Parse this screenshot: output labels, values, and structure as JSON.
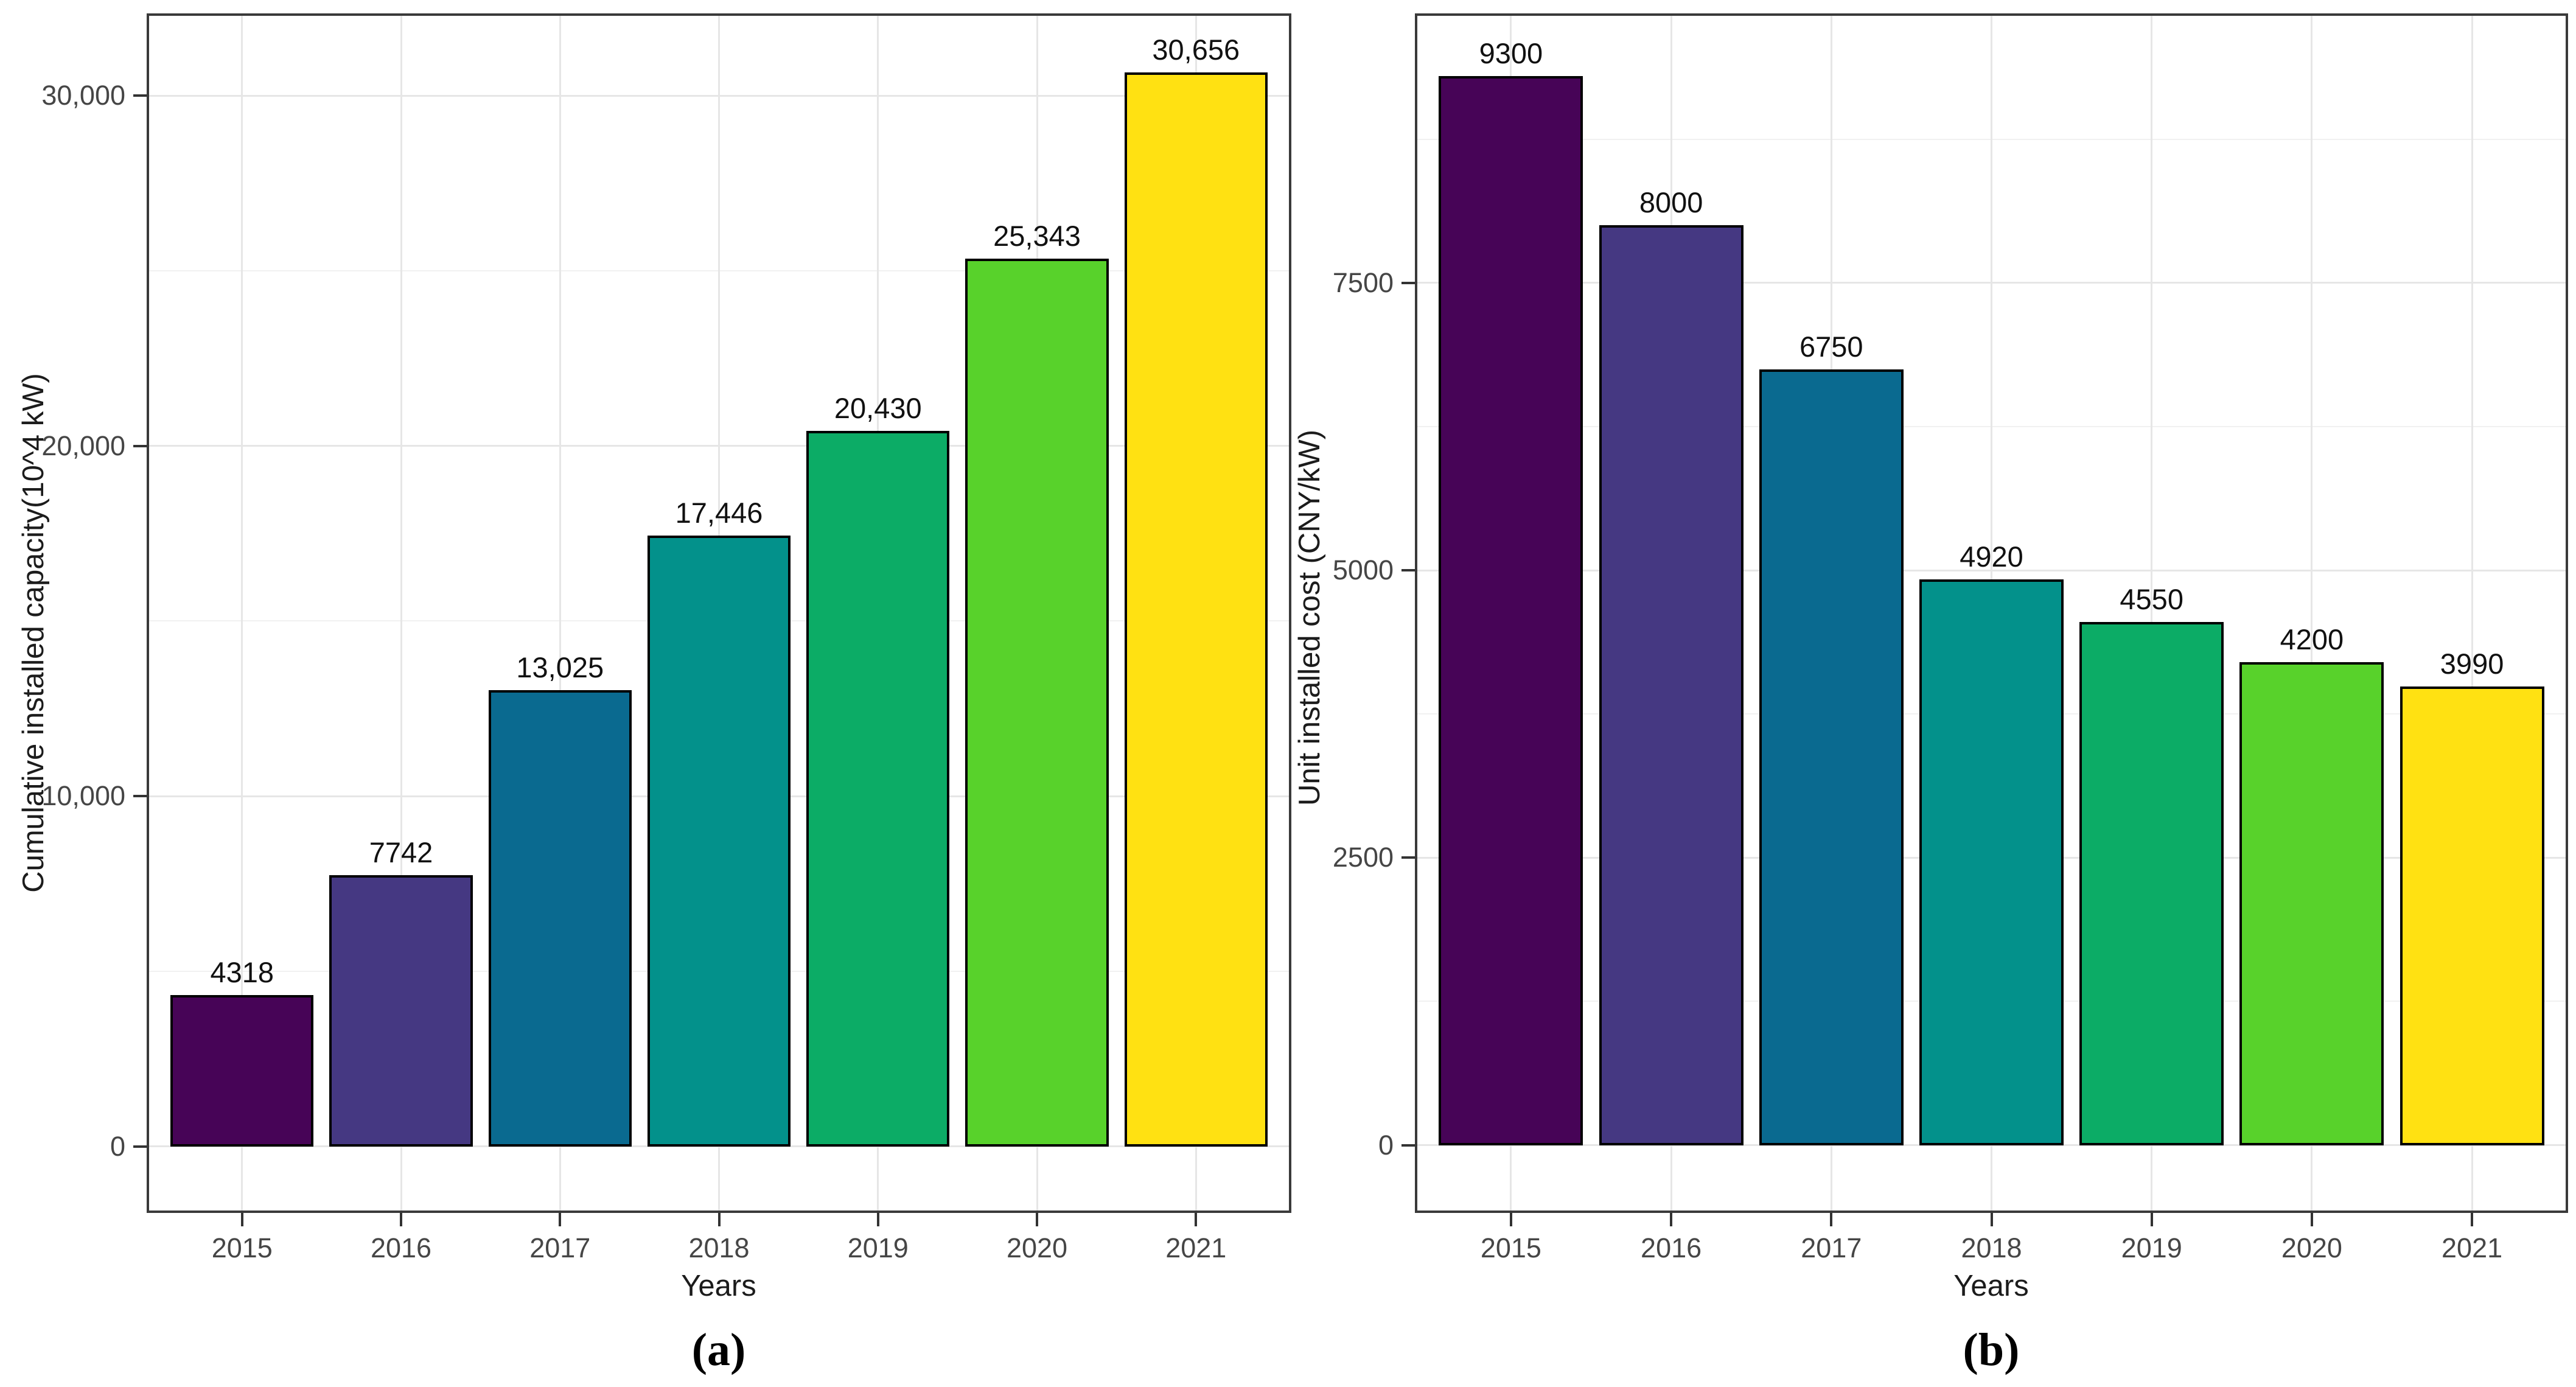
{
  "chart_data": [
    {
      "type": "bar",
      "caption": "(a)",
      "xlabel": "Years",
      "ylabel": "Cumulative installed capacity(10^4 kW)",
      "categories": [
        "2015",
        "2016",
        "2017",
        "2018",
        "2019",
        "2020",
        "2021"
      ],
      "values": [
        4318,
        7742,
        13025,
        17446,
        20430,
        25343,
        30656
      ],
      "bar_labels": [
        "4318",
        "7742",
        "13,025",
        "17,446",
        "20,430",
        "25,343",
        "30,656"
      ],
      "bar_colors": [
        "#470457",
        "#453882",
        "#0a6a90",
        "#03918b",
        "#0cac66",
        "#58d22b",
        "#ffe112"
      ],
      "y_ticks": [
        {
          "value": 0,
          "label": "0"
        },
        {
          "value": 10000,
          "label": "10,000"
        },
        {
          "value": 20000,
          "label": "20,000"
        },
        {
          "value": 30000,
          "label": "30,000"
        }
      ],
      "y_minor_ticks": [
        5000,
        15000,
        25000
      ],
      "ylim": [
        -1900,
        32350
      ],
      "grid": "major+minor",
      "legend": "none"
    },
    {
      "type": "bar",
      "caption": "(b)",
      "xlabel": "Years",
      "ylabel": "Unit installed cost (CNY/kW)",
      "categories": [
        "2015",
        "2016",
        "2017",
        "2018",
        "2019",
        "2020",
        "2021"
      ],
      "values": [
        9300,
        8000,
        6750,
        4920,
        4550,
        4200,
        3990
      ],
      "bar_labels": [
        "9300",
        "8000",
        "6750",
        "4920",
        "4550",
        "4200",
        "3990"
      ],
      "bar_colors": [
        "#470457",
        "#453882",
        "#0a6a90",
        "#03918b",
        "#0cac66",
        "#58d22b",
        "#ffe112"
      ],
      "y_ticks": [
        {
          "value": 0,
          "label": "0"
        },
        {
          "value": 2500,
          "label": "2500"
        },
        {
          "value": 5000,
          "label": "5000"
        },
        {
          "value": 7500,
          "label": "7500"
        }
      ],
      "y_minor_ticks": [
        1250,
        3750,
        6250,
        8750
      ],
      "ylim": [
        -590,
        9845
      ],
      "grid": "major+minor",
      "legend": "none"
    }
  ]
}
